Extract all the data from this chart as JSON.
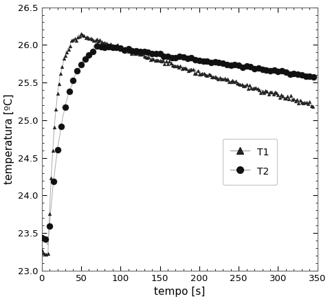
{
  "title": "",
  "xlabel": "tempo [s]",
  "ylabel": "temperatura [ºC]",
  "xlim": [
    0,
    350
  ],
  "ylim": [
    23.0,
    26.5
  ],
  "xticks": [
    0,
    50,
    100,
    150,
    200,
    250,
    300,
    350
  ],
  "yticks": [
    23.0,
    23.5,
    24.0,
    24.5,
    25.0,
    25.5,
    26.0,
    26.5
  ],
  "legend_labels": [
    "T1",
    "T2"
  ],
  "line_color_T1": "#aaaaaa",
  "line_color_T2": "#aaaaaa",
  "marker_color_T1": "#222222",
  "marker_color_T2": "#111111",
  "background_color": "#ffffff",
  "figsize": [
    4.8,
    4.38
  ],
  "dpi": 100
}
